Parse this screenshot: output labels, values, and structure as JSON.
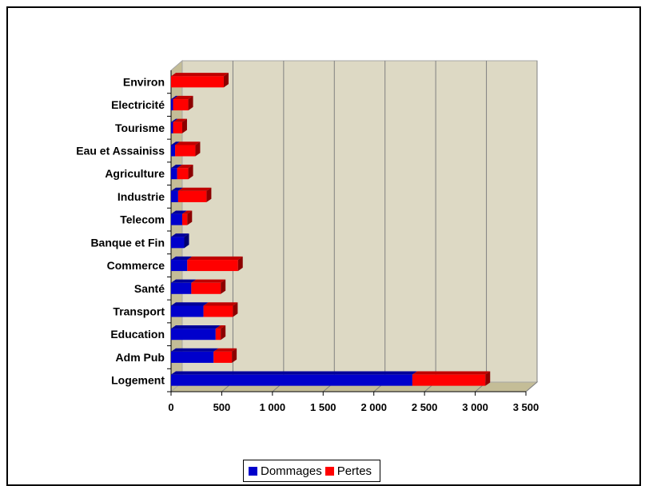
{
  "chart_data": {
    "type": "bar",
    "stacked": true,
    "orientation": "horizontal",
    "style": "3d",
    "categories": [
      "Logement",
      "Adm Pub",
      "Education",
      "Transport",
      "Santé",
      "Commerce",
      "Banque et Fin",
      "Telecom",
      "Industrie",
      "Agriculture",
      "Eau et Assainiss",
      "Tourisme",
      "Electricité",
      "Environ"
    ],
    "series": [
      {
        "name": "Dommages",
        "color": "#0000cc",
        "values": [
          2380,
          420,
          440,
          320,
          200,
          160,
          130,
          110,
          70,
          60,
          40,
          20,
          20,
          0
        ]
      },
      {
        "name": "Pertes",
        "color": "#ff0000",
        "values": [
          720,
          180,
          50,
          290,
          290,
          500,
          0,
          50,
          280,
          110,
          200,
          90,
          150,
          520
        ]
      }
    ],
    "xlim": [
      0,
      3500
    ],
    "xticks": [
      "0",
      "500",
      "1 000",
      "1 500",
      "2 000",
      "2 500",
      "3 000",
      "3 500"
    ],
    "grid": true,
    "legend_position": "bottom",
    "title": "",
    "xlabel": "",
    "ylabel": ""
  }
}
